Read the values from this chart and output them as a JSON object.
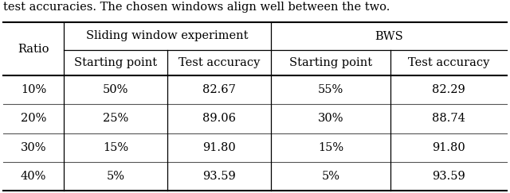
{
  "caption": "test accuracies. The chosen windows align well between the two.",
  "col_headers_level2": [
    "Starting point",
    "Test accuracy",
    "Starting point",
    "Test accuracy"
  ],
  "rows": [
    [
      "10%",
      "50%",
      "82.67",
      "55%",
      "82.29"
    ],
    [
      "20%",
      "25%",
      "89.06",
      "30%",
      "88.74"
    ],
    [
      "30%",
      "15%",
      "91.80",
      "15%",
      "91.80"
    ],
    [
      "40%",
      "5%",
      "93.59",
      "5%",
      "93.59"
    ]
  ],
  "font_size": 10.5,
  "caption_font_size": 10.5,
  "background_color": "#ffffff",
  "text_color": "#000000"
}
